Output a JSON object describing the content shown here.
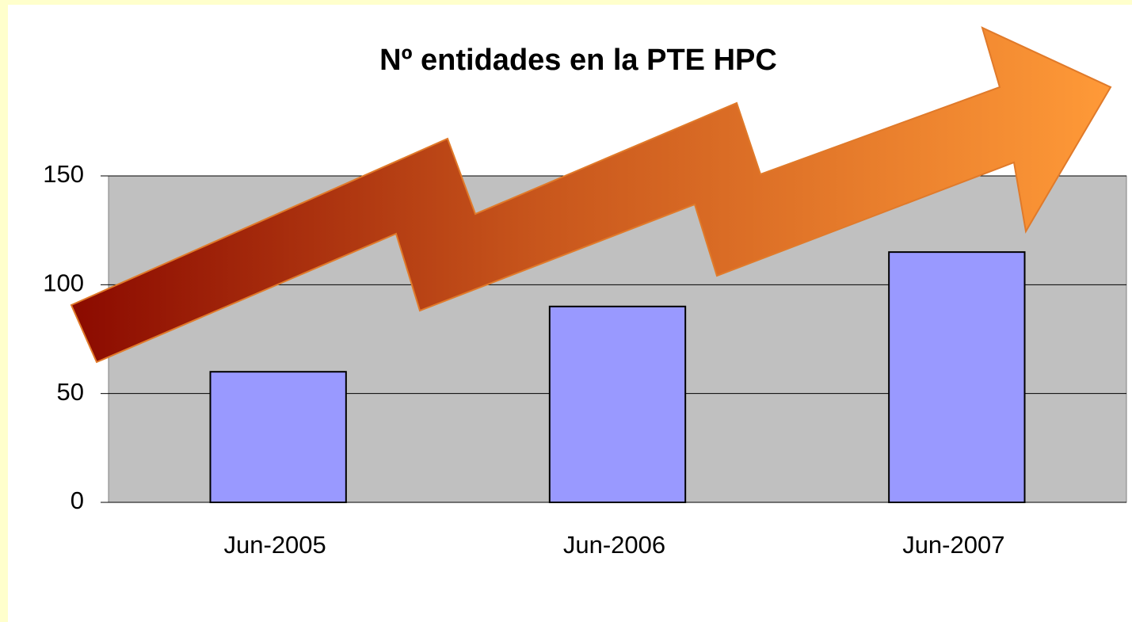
{
  "chart_data": {
    "type": "bar",
    "title": "Nº entidades en la PTE HPC",
    "categories": [
      "Jun-2005",
      "Jun-2006",
      "Jun-2007"
    ],
    "values": [
      60,
      90,
      115
    ],
    "color": "#9999ff",
    "ylim": [
      0,
      150
    ],
    "yticks": [
      0,
      50,
      100,
      150
    ],
    "grid": true
  }
}
